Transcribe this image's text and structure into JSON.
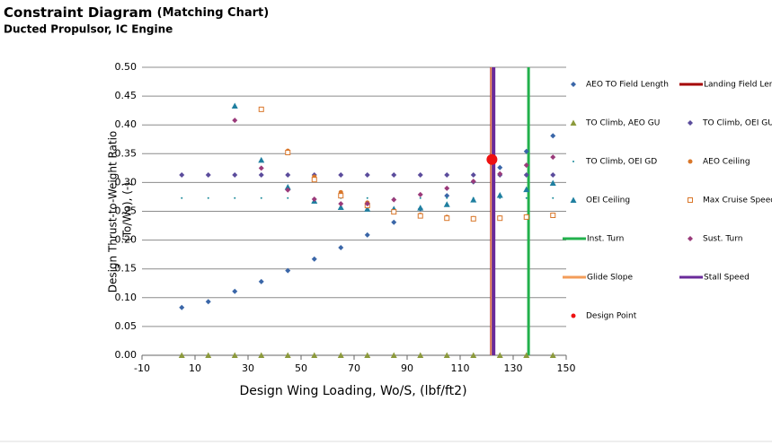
{
  "chart_data": {
    "type": "scatter",
    "title": "Constraint Diagram",
    "title_note": "(Matching Chart)",
    "subtitle": "Ducted Propulsor, IC Engine",
    "xlabel": "Design Wing Loading, Wo/S, (lbf/ft2)",
    "ylabel": [
      "Design Thrust-to-Weight Ratio",
      "(To/Wo), (-)"
    ],
    "xlim": [
      -10,
      150
    ],
    "xticks": [
      -10,
      10,
      30,
      50,
      70,
      90,
      110,
      130,
      150
    ],
    "ylim": [
      0,
      0.5
    ],
    "yticks": [
      {
        "value": 0,
        "label": "0.00"
      },
      {
        "value": 0.05,
        "label": "0.05"
      },
      {
        "value": 0.1,
        "label": "0.10"
      },
      {
        "value": 0.15,
        "label": "0.15"
      },
      {
        "value": 0.2,
        "label": "0.20"
      },
      {
        "value": 0.25,
        "label": "0.25"
      },
      {
        "value": 0.3,
        "label": "0.30"
      },
      {
        "value": 0.35,
        "label": "0.35"
      },
      {
        "value": 0.4,
        "label": "0.40"
      },
      {
        "value": 0.45,
        "label": "0.45"
      },
      {
        "value": 0.5,
        "label": "0.50"
      }
    ],
    "grid": true,
    "series": [
      {
        "name": "AEO TO Field Length",
        "color": "#3a66a8",
        "marker": "diamond",
        "x": [
          5,
          15,
          25,
          35,
          45,
          55,
          65,
          75,
          85,
          95,
          105,
          115,
          125,
          135,
          145
        ],
        "values": [
          0.083,
          0.093,
          0.111,
          0.128,
          0.147,
          0.167,
          0.187,
          0.209,
          0.231,
          0.254,
          0.277,
          0.301,
          0.326,
          0.354,
          0.381
        ]
      },
      {
        "name": "Landing Field Length",
        "color": "#a50000",
        "marker": "line",
        "x": [
          122,
          122
        ],
        "values": [
          0,
          0.5
        ]
      },
      {
        "name": "TO Climb, AEO GU",
        "color": "#8c9a3c",
        "marker": "triangle",
        "x": [
          5,
          15,
          25,
          35,
          45,
          55,
          65,
          75,
          85,
          95,
          105,
          115,
          125,
          135,
          145
        ],
        "values": [
          0,
          0,
          0,
          0,
          0,
          0,
          0,
          0,
          0,
          0,
          0,
          0,
          0,
          0,
          0
        ]
      },
      {
        "name": "TO Climb, OEI GU",
        "color": "#5b4c9c",
        "marker": "diamond",
        "x": [
          5,
          15,
          25,
          35,
          45,
          55,
          65,
          75,
          85,
          95,
          105,
          115,
          125,
          135,
          145
        ],
        "values": [
          0.313,
          0.313,
          0.313,
          0.313,
          0.313,
          0.313,
          0.313,
          0.313,
          0.313,
          0.313,
          0.313,
          0.313,
          0.313,
          0.313,
          0.313
        ]
      },
      {
        "name": "TO Climb, OEI GD",
        "color": "#1a8a9a",
        "marker": "dot",
        "x": [
          5,
          15,
          25,
          35,
          45,
          55,
          65,
          75,
          85,
          95,
          105,
          115,
          125,
          135,
          145
        ],
        "values": [
          0.273,
          0.273,
          0.273,
          0.273,
          0.273,
          0.273,
          0.273,
          0.273,
          0.273,
          0.273,
          0.273,
          0.273,
          0.273,
          0.273,
          0.273
        ]
      },
      {
        "name": "AEO Ceiling",
        "color": "#d9772a",
        "marker": "circle",
        "x": [
          35,
          45,
          55,
          65,
          75,
          85,
          95,
          105,
          115,
          125,
          135,
          145
        ],
        "values": [
          0.427,
          0.355,
          0.31,
          0.283,
          0.265,
          0.252,
          0.244,
          0.24,
          0.238,
          0.239,
          0.241,
          0.243
        ]
      },
      {
        "name": "OEI Ceiling",
        "color": "#1f7fa0",
        "marker": "triangle",
        "x": [
          25,
          35,
          45,
          55,
          65,
          75,
          85,
          95,
          105,
          115,
          125,
          135,
          145
        ],
        "values": [
          0.433,
          0.339,
          0.292,
          0.268,
          0.257,
          0.254,
          0.254,
          0.256,
          0.262,
          0.27,
          0.278,
          0.288,
          0.299
        ]
      },
      {
        "name": "Max Cruise Speed",
        "color": "#d9772a",
        "marker": "square",
        "x": [
          35,
          45,
          55,
          65,
          75,
          85,
          95,
          105,
          115,
          125,
          135,
          145
        ],
        "values": [
          0.427,
          0.352,
          0.305,
          0.277,
          0.26,
          0.249,
          0.242,
          0.238,
          0.237,
          0.238,
          0.24,
          0.243
        ]
      },
      {
        "name": "Inst. Turn",
        "color": "#22b14c",
        "marker": "line",
        "x": [
          135.8,
          135.8
        ],
        "values": [
          0,
          0.5
        ]
      },
      {
        "name": "Sust. Turn",
        "color": "#9a3a7a",
        "marker": "diamond",
        "x": [
          25,
          35,
          45,
          55,
          65,
          75,
          85,
          95,
          105,
          115,
          125,
          135,
          145
        ],
        "values": [
          0.408,
          0.325,
          0.287,
          0.271,
          0.263,
          0.263,
          0.27,
          0.279,
          0.29,
          0.302,
          0.315,
          0.33,
          0.344
        ]
      },
      {
        "name": "Glide Slope",
        "color": "#f39c5a",
        "marker": "line",
        "x": [
          122,
          122
        ],
        "values": [
          0,
          0.5
        ]
      },
      {
        "name": "Stall Speed",
        "color": "#6a2a9a",
        "marker": "line",
        "x": [
          122.6,
          122.6
        ],
        "values": [
          0,
          0.5
        ]
      },
      {
        "name": "Design Point",
        "color": "#ee1111",
        "marker": "bigcircle",
        "x": [
          122
        ],
        "values": [
          0.34
        ]
      }
    ]
  }
}
